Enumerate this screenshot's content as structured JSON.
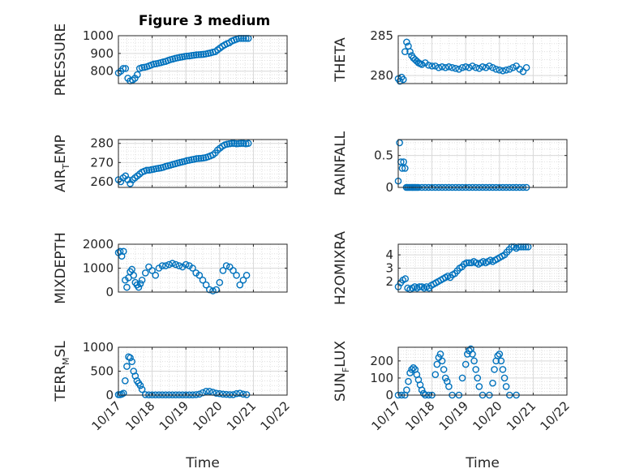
{
  "figure_title": "Figure 3 medium",
  "colors": {
    "marker": "#0072BD",
    "axis": "#262626",
    "grid": "#D9D9D9"
  },
  "chart_data": [
    {
      "type": "scatter",
      "title": "Figure 3 medium",
      "xlabel": "",
      "ylabel": "PRESSURE",
      "xlim": [
        0,
        5
      ],
      "ylim": [
        730,
        1000
      ],
      "yticks": [
        800,
        900,
        1000
      ],
      "xticks": [
        0,
        1,
        2,
        3,
        4,
        5
      ],
      "x": [
        0.0,
        0.07,
        0.14,
        0.21,
        0.28,
        0.35,
        0.42,
        0.49,
        0.56,
        0.63,
        0.7,
        0.77,
        0.84,
        0.91,
        0.98,
        1.05,
        1.12,
        1.19,
        1.26,
        1.33,
        1.4,
        1.47,
        1.54,
        1.61,
        1.68,
        1.75,
        1.82,
        1.89,
        1.96,
        2.03,
        2.1,
        2.17,
        2.24,
        2.31,
        2.38,
        2.45,
        2.52,
        2.59,
        2.66,
        2.73,
        2.8,
        2.87,
        2.94,
        3.01,
        3.08,
        3.15,
        3.22,
        3.29,
        3.36,
        3.43,
        3.5,
        3.57,
        3.64,
        3.71,
        3.78,
        3.85
      ],
      "y": [
        790,
        800,
        815,
        815,
        760,
        745,
        750,
        760,
        780,
        815,
        820,
        822,
        825,
        830,
        835,
        840,
        842,
        845,
        848,
        852,
        855,
        860,
        865,
        868,
        872,
        875,
        878,
        880,
        883,
        885,
        886,
        888,
        890,
        892,
        893,
        894,
        895,
        897,
        900,
        903,
        907,
        910,
        920,
        930,
        940,
        948,
        955,
        960,
        970,
        975,
        980,
        985,
        985,
        985,
        985,
        985
      ]
    },
    {
      "type": "scatter",
      "title": "",
      "xlabel": "",
      "ylabel": "THETA",
      "xlim": [
        0,
        5
      ],
      "ylim": [
        279,
        285
      ],
      "yticks": [
        280,
        285
      ],
      "xticks": [
        0,
        1,
        2,
        3,
        4,
        5
      ],
      "x": [
        0.0,
        0.05,
        0.1,
        0.15,
        0.2,
        0.25,
        0.3,
        0.35,
        0.4,
        0.45,
        0.5,
        0.55,
        0.6,
        0.65,
        0.7,
        0.8,
        0.9,
        1.0,
        1.1,
        1.2,
        1.3,
        1.4,
        1.5,
        1.6,
        1.7,
        1.8,
        1.9,
        2.0,
        2.1,
        2.2,
        2.3,
        2.4,
        2.5,
        2.6,
        2.7,
        2.8,
        2.9,
        3.0,
        3.1,
        3.2,
        3.3,
        3.4,
        3.5,
        3.6,
        3.7,
        3.8
      ],
      "y": [
        279.6,
        279.3,
        279.8,
        279.5,
        283.0,
        284.2,
        283.7,
        283.0,
        282.5,
        282.2,
        282.0,
        281.8,
        281.6,
        281.5,
        281.4,
        281.6,
        281.3,
        281.2,
        281.2,
        281.0,
        281.1,
        281.0,
        281.1,
        281.0,
        280.9,
        280.8,
        281.0,
        281.1,
        281.0,
        281.2,
        281.0,
        280.9,
        281.1,
        281.0,
        281.2,
        281.0,
        280.8,
        280.7,
        280.6,
        280.7,
        280.8,
        281.0,
        281.2,
        280.8,
        280.5,
        281.0
      ]
    },
    {
      "type": "scatter",
      "title": "",
      "xlabel": "",
      "ylabel": "AIR_TEMP",
      "xlim": [
        0,
        5
      ],
      "ylim": [
        257,
        282
      ],
      "yticks": [
        260,
        270,
        280
      ],
      "xticks": [
        0,
        1,
        2,
        3,
        4,
        5
      ],
      "x": [
        0.0,
        0.07,
        0.14,
        0.21,
        0.28,
        0.35,
        0.42,
        0.49,
        0.56,
        0.63,
        0.7,
        0.77,
        0.84,
        0.91,
        0.98,
        1.05,
        1.12,
        1.19,
        1.26,
        1.33,
        1.4,
        1.47,
        1.54,
        1.61,
        1.68,
        1.75,
        1.82,
        1.89,
        1.96,
        2.03,
        2.1,
        2.17,
        2.24,
        2.31,
        2.38,
        2.45,
        2.52,
        2.59,
        2.66,
        2.73,
        2.8,
        2.87,
        2.94,
        3.01,
        3.08,
        3.15,
        3.22,
        3.29,
        3.36,
        3.43,
        3.5,
        3.57,
        3.64,
        3.71,
        3.78,
        3.85
      ],
      "y": [
        261,
        260,
        262,
        263,
        261,
        259,
        261,
        262,
        263,
        264,
        265,
        265.5,
        266,
        266,
        266.3,
        266.5,
        266.8,
        267,
        267.2,
        267.5,
        268,
        268.3,
        268.6,
        269,
        269.3,
        269.7,
        270,
        270.3,
        270.6,
        271,
        271.2,
        271.5,
        271.7,
        272,
        272.1,
        272.2,
        272.4,
        272.6,
        273,
        273.5,
        274,
        275,
        276.5,
        277.5,
        278.5,
        279.2,
        279.6,
        279.8,
        280,
        280,
        279.8,
        279.9,
        280,
        280,
        279.8,
        280
      ]
    },
    {
      "type": "scatter",
      "title": "",
      "xlabel": "",
      "ylabel": "RAINFALL",
      "xlim": [
        0,
        5
      ],
      "ylim": [
        0,
        0.75
      ],
      "yticks": [
        0,
        0.5
      ],
      "xticks": [
        0,
        1,
        2,
        3,
        4,
        5
      ],
      "x": [
        0.0,
        0.04,
        0.08,
        0.12,
        0.16,
        0.2,
        0.24,
        0.28,
        0.32,
        0.36,
        0.4,
        0.44,
        0.48,
        0.52,
        0.56,
        0.6,
        0.7,
        0.8,
        0.9,
        1.0,
        1.1,
        1.2,
        1.3,
        1.4,
        1.5,
        1.6,
        1.7,
        1.8,
        1.9,
        2.0,
        2.1,
        2.2,
        2.3,
        2.4,
        2.5,
        2.6,
        2.7,
        2.8,
        2.9,
        3.0,
        3.1,
        3.2,
        3.3,
        3.4,
        3.5,
        3.6,
        3.7,
        3.8
      ],
      "y": [
        0.1,
        0.7,
        0.4,
        0.3,
        0.4,
        0.3,
        0.0,
        0.0,
        0.0,
        0.0,
        0.0,
        0.0,
        0.0,
        0.0,
        0.0,
        0.0,
        0.0,
        0.0,
        0.0,
        0.0,
        0.0,
        0.0,
        0.0,
        0.0,
        0.0,
        0.0,
        0.0,
        0.0,
        0.0,
        0.0,
        0.0,
        0.0,
        0.0,
        0.0,
        0.0,
        0.0,
        0.0,
        0.0,
        0.0,
        0.0,
        0.0,
        0.0,
        0.0,
        0.0,
        0.0,
        0.0,
        0.0,
        0.0
      ]
    },
    {
      "type": "scatter",
      "title": "",
      "xlabel": "",
      "ylabel": "MIXDEPTH",
      "xlim": [
        0,
        5
      ],
      "ylim": [
        0,
        2000
      ],
      "yticks": [
        0,
        1000,
        2000
      ],
      "xticks": [
        0,
        1,
        2,
        3,
        4,
        5
      ],
      "x": [
        0.0,
        0.05,
        0.1,
        0.15,
        0.2,
        0.25,
        0.3,
        0.35,
        0.4,
        0.45,
        0.5,
        0.55,
        0.6,
        0.65,
        0.7,
        0.8,
        0.9,
        1.0,
        1.1,
        1.2,
        1.3,
        1.4,
        1.5,
        1.6,
        1.7,
        1.8,
        1.9,
        2.0,
        2.1,
        2.2,
        2.3,
        2.4,
        2.5,
        2.6,
        2.7,
        2.8,
        2.9,
        3.0,
        3.1,
        3.2,
        3.3,
        3.4,
        3.5,
        3.6,
        3.7,
        3.8
      ],
      "y": [
        1650,
        1700,
        1500,
        1700,
        500,
        200,
        600,
        850,
        950,
        700,
        400,
        300,
        200,
        350,
        500,
        800,
        1050,
        900,
        700,
        1000,
        1100,
        1100,
        1150,
        1200,
        1150,
        1100,
        1050,
        1150,
        1100,
        1000,
        800,
        700,
        500,
        300,
        100,
        50,
        100,
        400,
        900,
        1100,
        1050,
        900,
        700,
        300,
        500,
        700
      ]
    },
    {
      "type": "scatter",
      "title": "",
      "xlabel": "",
      "ylabel": "H2OMIXRA",
      "xlim": [
        0,
        5
      ],
      "ylim": [
        1.2,
        4.8
      ],
      "yticks": [
        2,
        3,
        4
      ],
      "xticks": [
        0,
        1,
        2,
        3,
        4,
        5
      ],
      "x": [
        0.0,
        0.07,
        0.14,
        0.21,
        0.28,
        0.35,
        0.42,
        0.49,
        0.56,
        0.63,
        0.7,
        0.77,
        0.84,
        0.91,
        0.98,
        1.05,
        1.12,
        1.19,
        1.26,
        1.33,
        1.4,
        1.47,
        1.54,
        1.61,
        1.68,
        1.75,
        1.82,
        1.89,
        1.96,
        2.03,
        2.1,
        2.17,
        2.24,
        2.31,
        2.38,
        2.45,
        2.52,
        2.59,
        2.66,
        2.73,
        2.8,
        2.87,
        2.94,
        3.01,
        3.08,
        3.15,
        3.22,
        3.29,
        3.36,
        3.43,
        3.5,
        3.57,
        3.64,
        3.71,
        3.78,
        3.85
      ],
      "y": [
        1.6,
        1.9,
        2.1,
        2.2,
        1.5,
        1.4,
        1.5,
        1.6,
        1.5,
        1.6,
        1.6,
        1.5,
        1.6,
        1.5,
        1.7,
        1.8,
        1.9,
        2.0,
        2.1,
        2.2,
        2.3,
        2.4,
        2.3,
        2.5,
        2.6,
        2.8,
        3.0,
        3.1,
        3.3,
        3.4,
        3.4,
        3.4,
        3.5,
        3.4,
        3.3,
        3.4,
        3.5,
        3.4,
        3.5,
        3.6,
        3.5,
        3.6,
        3.7,
        3.8,
        3.9,
        4.0,
        4.2,
        4.4,
        4.6,
        4.6,
        4.5,
        4.6,
        4.6,
        4.6,
        4.6,
        4.6
      ]
    },
    {
      "type": "scatter",
      "title": "",
      "xlabel": "Time",
      "ylabel": "TERR_MSL",
      "xlim": [
        0,
        5
      ],
      "ylim": [
        0,
        1000
      ],
      "yticks": [
        0,
        500,
        1000
      ],
      "xticks": [
        0,
        1,
        2,
        3,
        4,
        5
      ],
      "xticklabels": [
        "10/17",
        "10/18",
        "10/19",
        "10/20",
        "10/21",
        "10/22"
      ],
      "x": [
        0.0,
        0.05,
        0.1,
        0.15,
        0.2,
        0.25,
        0.3,
        0.35,
        0.4,
        0.45,
        0.5,
        0.55,
        0.6,
        0.65,
        0.7,
        0.8,
        0.9,
        1.0,
        1.1,
        1.2,
        1.3,
        1.4,
        1.5,
        1.6,
        1.7,
        1.8,
        1.9,
        2.0,
        2.1,
        2.2,
        2.3,
        2.4,
        2.5,
        2.6,
        2.7,
        2.8,
        2.9,
        3.0,
        3.1,
        3.2,
        3.3,
        3.4,
        3.5,
        3.6,
        3.7,
        3.8
      ],
      "y": [
        10,
        10,
        20,
        40,
        300,
        600,
        800,
        780,
        700,
        500,
        400,
        300,
        250,
        200,
        120,
        10,
        5,
        5,
        5,
        5,
        5,
        5,
        5,
        5,
        5,
        5,
        5,
        5,
        5,
        5,
        10,
        20,
        50,
        80,
        80,
        60,
        40,
        30,
        20,
        15,
        10,
        10,
        30,
        40,
        20,
        10
      ]
    },
    {
      "type": "scatter",
      "title": "",
      "xlabel": "Time",
      "ylabel": "SUN_FLUX",
      "xlim": [
        0,
        5
      ],
      "ylim": [
        0,
        280
      ],
      "yticks": [
        0,
        100,
        200
      ],
      "xticks": [
        0,
        1,
        2,
        3,
        4,
        5
      ],
      "xticklabels": [
        "10/17",
        "10/18",
        "10/19",
        "10/20",
        "10/21",
        "10/22"
      ],
      "x": [
        0.0,
        0.1,
        0.2,
        0.25,
        0.3,
        0.35,
        0.4,
        0.45,
        0.5,
        0.55,
        0.6,
        0.65,
        0.7,
        0.75,
        0.8,
        0.9,
        1.0,
        1.1,
        1.15,
        1.2,
        1.25,
        1.3,
        1.35,
        1.4,
        1.45,
        1.5,
        1.6,
        1.8,
        1.9,
        2.0,
        2.05,
        2.1,
        2.15,
        2.2,
        2.25,
        2.3,
        2.35,
        2.4,
        2.5,
        2.7,
        2.8,
        2.85,
        2.9,
        2.95,
        3.0,
        3.05,
        3.1,
        3.15,
        3.2,
        3.3,
        3.5
      ],
      "y": [
        0,
        0,
        0,
        30,
        80,
        130,
        150,
        160,
        150,
        120,
        90,
        60,
        30,
        10,
        0,
        0,
        0,
        120,
        180,
        220,
        240,
        200,
        150,
        100,
        80,
        50,
        0,
        0,
        100,
        180,
        240,
        260,
        270,
        240,
        200,
        150,
        100,
        50,
        0,
        0,
        70,
        150,
        200,
        230,
        240,
        200,
        150,
        100,
        50,
        0,
        0
      ]
    }
  ]
}
